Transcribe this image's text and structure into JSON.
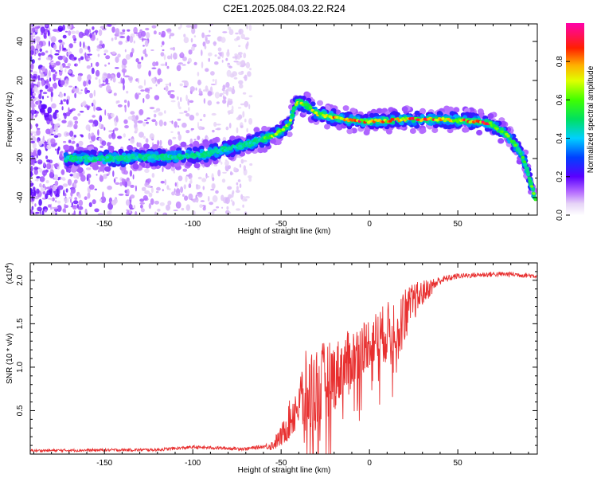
{
  "title": "C2E1.2025.084.03.22.R24",
  "chart_data": [
    {
      "type": "heatmap",
      "xlabel": "Height of straight line (km)",
      "ylabel": "Frequency (Hz)",
      "xlim": [
        -192,
        95
      ],
      "ylim": [
        -49,
        49
      ],
      "xticks": [
        -150,
        -100,
        -50,
        0,
        50
      ],
      "yticks": [
        -40,
        -20,
        0,
        20,
        40
      ],
      "colorbar": {
        "label": "Normalized spectral amplitude",
        "range": [
          0,
          1
        ],
        "ticks": [
          0.0,
          0.2,
          0.4,
          0.6,
          0.8
        ],
        "colormap": "rainbow (white-violet-blue-cyan-green-yellow-orange-red-magenta)"
      },
      "ridge": {
        "x": [
          -172,
          -150,
          -130,
          -110,
          -95,
          -85,
          -70,
          -60,
          -50,
          -45,
          -42,
          -40,
          -35,
          -30,
          -25,
          -15,
          0,
          20,
          40,
          60,
          68,
          75,
          80,
          85,
          88,
          90,
          92,
          94
        ],
        "y": [
          -20,
          -20,
          -19.5,
          -19,
          -18,
          -16,
          -13,
          -10,
          -6,
          -2,
          8,
          9,
          7,
          3,
          2,
          0,
          -1,
          0,
          0,
          -1,
          -2,
          -6,
          -10,
          -16,
          -22,
          -28,
          -35,
          -41
        ],
        "peak_amplitude": 1.0
      }
    },
    {
      "type": "line",
      "xlabel": "Height of straight line (km)",
      "ylabel": "SNR (10 * v/v)",
      "scale_label": "(x10",
      "scale_exponent": "4",
      "xlim": [
        -192,
        95
      ],
      "ylim": [
        0,
        2.2
      ],
      "xticks": [
        -150,
        -100,
        -50,
        0,
        50
      ],
      "yticks": [
        0.5,
        1.0,
        1.5,
        2.0
      ],
      "color": "#e83030",
      "trend": {
        "x": [
          -192,
          -120,
          -100,
          -70,
          -55,
          -50,
          -45,
          -40,
          -35,
          -30,
          -25,
          -20,
          -15,
          -10,
          -5,
          0,
          5,
          10,
          15,
          20,
          25,
          30,
          40,
          50,
          60,
          70,
          80,
          95
        ],
        "y": [
          0.04,
          0.05,
          0.08,
          0.06,
          0.1,
          0.2,
          0.4,
          0.6,
          0.7,
          0.75,
          0.85,
          0.9,
          1.0,
          1.1,
          1.2,
          1.3,
          1.35,
          1.4,
          1.5,
          1.6,
          1.75,
          1.85,
          2.0,
          2.05,
          2.06,
          2.07,
          2.07,
          2.05
        ]
      },
      "spread": {
        "x": [
          -192,
          -60,
          -55,
          -50,
          -40,
          -35,
          -30,
          -20,
          -10,
          0,
          10,
          20,
          30,
          40,
          50,
          95
        ],
        "y": [
          0.015,
          0.02,
          0.06,
          0.12,
          0.35,
          0.55,
          0.5,
          0.4,
          0.35,
          0.3,
          0.35,
          0.3,
          0.15,
          0.05,
          0.03,
          0.03
        ]
      }
    }
  ]
}
